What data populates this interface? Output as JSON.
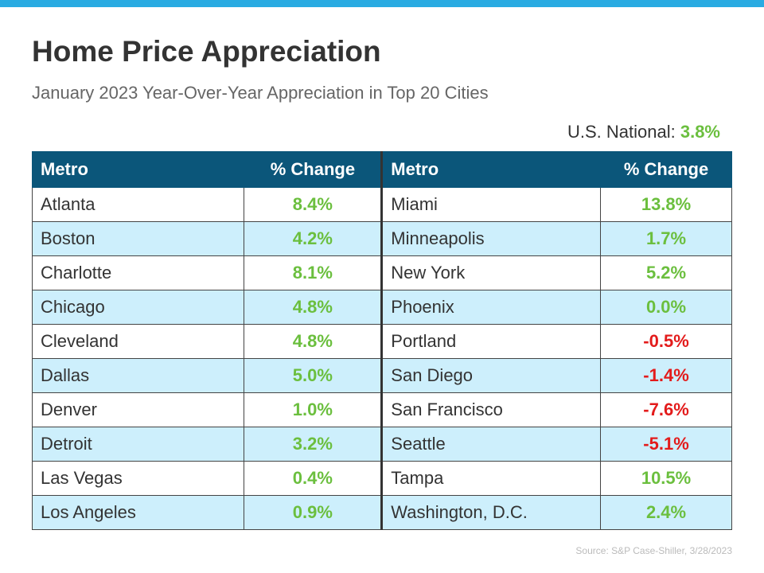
{
  "header": {
    "title": "Home Price Appreciation",
    "subtitle": "January 2023 Year-Over-Year Appreciation in Top 20 Cities"
  },
  "national": {
    "label": "U.S. National:",
    "value": "3.8%"
  },
  "table": {
    "headers": [
      "Metro",
      "% Change",
      "Metro",
      "% Change"
    ],
    "rows": [
      [
        "Atlanta",
        "8.4%",
        "Miami",
        "13.8%"
      ],
      [
        "Boston",
        "4.2%",
        "Minneapolis",
        "1.7%"
      ],
      [
        "Charlotte",
        "8.1%",
        "New York",
        "5.2%"
      ],
      [
        "Chicago",
        "4.8%",
        "Phoenix",
        "0.0%"
      ],
      [
        "Cleveland",
        "4.8%",
        "Portland",
        "-0.5%"
      ],
      [
        "Dallas",
        "5.0%",
        "San Diego",
        "-1.4%"
      ],
      [
        "Denver",
        "1.0%",
        "San Francisco",
        "-7.6%"
      ],
      [
        "Detroit",
        "3.2%",
        "Seattle",
        "-5.1%"
      ],
      [
        "Las Vegas",
        "0.4%",
        "Tampa",
        "10.5%"
      ],
      [
        "Los Angeles",
        "0.9%",
        "Washington, D.C.",
        "2.4%"
      ]
    ]
  },
  "source": "Source: S&P Case-Shiller, 3/28/2023"
}
